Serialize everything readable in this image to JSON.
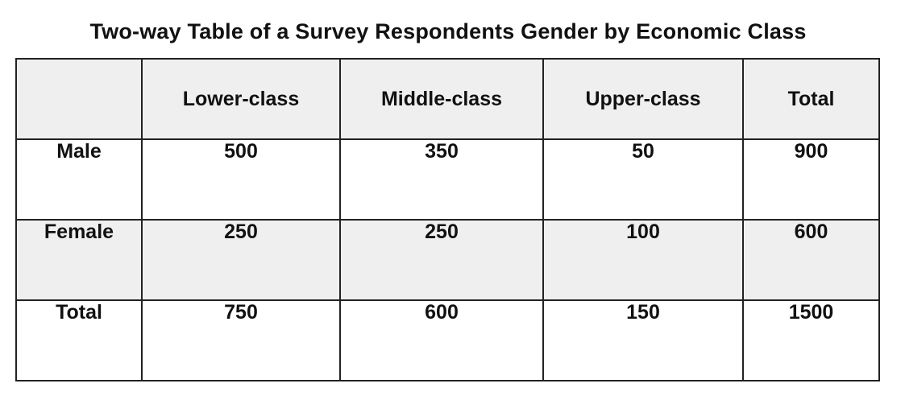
{
  "title": "Two-way Table of a Survey Respondents Gender by Economic Class",
  "chart_data": {
    "type": "table",
    "title": "Two-way Table of a Survey Respondents Gender by Economic Class",
    "columns": [
      "",
      "Lower-class",
      "Middle-class",
      "Upper-class",
      "Total"
    ],
    "rows": [
      {
        "label": "Male",
        "values": [
          "500",
          "350",
          "50",
          "900"
        ]
      },
      {
        "label": "Female",
        "values": [
          "250",
          "250",
          "100",
          "600"
        ]
      },
      {
        "label": "Total",
        "values": [
          "750",
          "600",
          "150",
          "1500"
        ]
      }
    ]
  },
  "colors": {
    "shaded_row": "#efefef",
    "border": "#222222"
  }
}
